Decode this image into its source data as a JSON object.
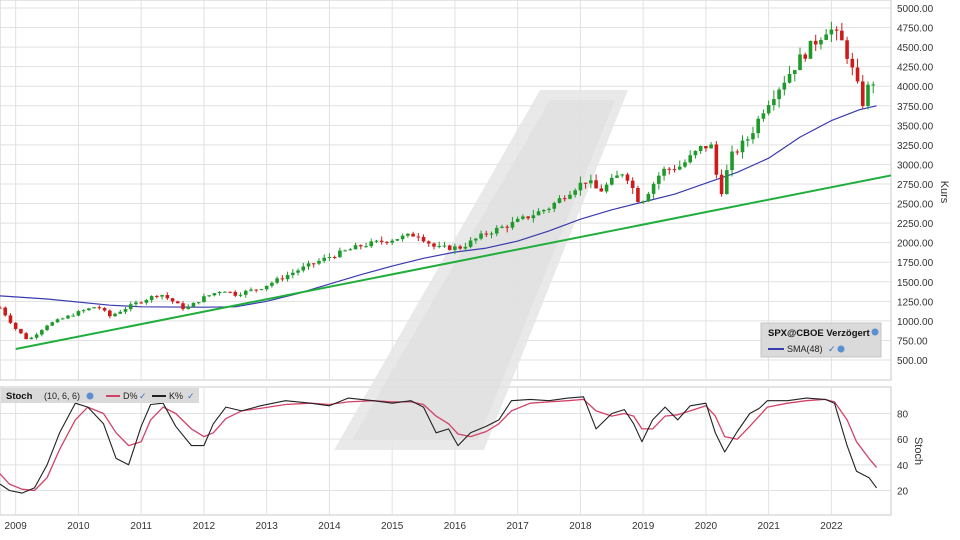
{
  "colors": {
    "up": "#1e9a2c",
    "down": "#cc1b1b",
    "sma": "#3a3ab0",
    "trend": "#1fae3b",
    "stoch_d": "#d24268",
    "stoch_k": "#222222",
    "grid": "#e1e1e1"
  },
  "chart_data": [
    {
      "type": "candlestick",
      "id": "price",
      "ylabel": "Kurs",
      "ylim": [
        300,
        5100
      ],
      "y_ticks": [
        500,
        750,
        1000,
        1250,
        1500,
        1750,
        2000,
        2250,
        2500,
        2750,
        3000,
        3250,
        3500,
        3750,
        4000,
        4250,
        4500,
        4750,
        5000
      ],
      "y_tick_labels": [
        "500.00",
        "750.00",
        "1000.00",
        "1250.00",
        "1500.00",
        "1750.00",
        "2000.00",
        "2250.00",
        "2500.00",
        "2750.00",
        "3000.00",
        "3250.00",
        "3500.00",
        "3750.00",
        "4000.00",
        "4250.00",
        "4500.00",
        "4750.00",
        "5000.00"
      ],
      "xlim": [
        2008.75,
        2022.95
      ],
      "x_ticks": [
        2009,
        2010,
        2011,
        2012,
        2013,
        2014,
        2015,
        2016,
        2017,
        2018,
        2019,
        2020,
        2021,
        2022
      ],
      "x_tick_labels": [
        "2009",
        "2010",
        "2011",
        "2012",
        "2013",
        "2014",
        "2015",
        "2016",
        "2017",
        "2018",
        "2019",
        "2020",
        "2021",
        "2022"
      ],
      "legend": {
        "title": "SPX@CBOE Verzögert",
        "sma_label": "SMA(48)",
        "position": "bottom-right"
      },
      "anchors": [
        [
          2008.75,
          1170
        ],
        [
          2009.0,
          900
        ],
        [
          2009.2,
          750
        ],
        [
          2009.5,
          950
        ],
        [
          2010.0,
          1110
        ],
        [
          2010.3,
          1190
        ],
        [
          2010.5,
          1060
        ],
        [
          2010.9,
          1220
        ],
        [
          2011.3,
          1350
        ],
        [
          2011.7,
          1150
        ],
        [
          2012.0,
          1300
        ],
        [
          2012.3,
          1400
        ],
        [
          2012.5,
          1340
        ],
        [
          2012.9,
          1420
        ],
        [
          2013.5,
          1650
        ],
        [
          2014.0,
          1820
        ],
        [
          2014.5,
          1960
        ],
        [
          2014.8,
          2010
        ],
        [
          2015.4,
          2110
        ],
        [
          2015.7,
          1930
        ],
        [
          2016.1,
          1940
        ],
        [
          2016.5,
          2120
        ],
        [
          2016.9,
          2240
        ],
        [
          2017.5,
          2450
        ],
        [
          2017.9,
          2700
        ],
        [
          2018.1,
          2800
        ],
        [
          2018.3,
          2650
        ],
        [
          2018.7,
          2920
        ],
        [
          2018.95,
          2500
        ],
        [
          2019.3,
          2920
        ],
        [
          2019.6,
          2980
        ],
        [
          2019.95,
          3230
        ],
        [
          2020.1,
          3230
        ],
        [
          2020.22,
          2580
        ],
        [
          2020.4,
          3100
        ],
        [
          2020.7,
          3360
        ],
        [
          2020.95,
          3760
        ],
        [
          2021.5,
          4350
        ],
        [
          2021.95,
          4760
        ],
        [
          2022.2,
          4530
        ],
        [
          2022.5,
          3790
        ],
        [
          2022.65,
          4130
        ],
        [
          2022.72,
          3830
        ]
      ],
      "series": [
        {
          "name": "SMA(48)",
          "type": "line",
          "points": [
            [
              2008.75,
              1320
            ],
            [
              2009.5,
              1280
            ],
            [
              2010.5,
              1200
            ],
            [
              2011.0,
              1180
            ],
            [
              2012.0,
              1175
            ],
            [
              2012.5,
              1180
            ],
            [
              2013.0,
              1250
            ],
            [
              2013.5,
              1350
            ],
            [
              2014.0,
              1470
            ],
            [
              2014.5,
              1590
            ],
            [
              2015.0,
              1700
            ],
            [
              2015.5,
              1800
            ],
            [
              2016.0,
              1880
            ],
            [
              2016.5,
              1930
            ],
            [
              2017.0,
              2020
            ],
            [
              2017.5,
              2150
            ],
            [
              2018.0,
              2300
            ],
            [
              2018.5,
              2420
            ],
            [
              2019.0,
              2520
            ],
            [
              2019.5,
              2620
            ],
            [
              2020.0,
              2760
            ],
            [
              2020.5,
              2900
            ],
            [
              2021.0,
              3080
            ],
            [
              2021.5,
              3350
            ],
            [
              2022.0,
              3560
            ],
            [
              2022.45,
              3700
            ],
            [
              2022.72,
              3750
            ]
          ]
        },
        {
          "name": "Trendlinie",
          "type": "line",
          "points": [
            [
              2009.0,
              640
            ],
            [
              2022.95,
              2860
            ]
          ]
        }
      ]
    },
    {
      "type": "line",
      "id": "stoch",
      "ylabel": "Stoch",
      "ylim": [
        0,
        100
      ],
      "y_ticks": [
        20,
        40,
        60,
        80
      ],
      "y_tick_labels": [
        "20",
        "40",
        "60",
        "80"
      ],
      "legend": {
        "title": "Stoch",
        "params": "(10, 6, 6)",
        "d_label": "D%",
        "k_label": "K%",
        "position": "top-left"
      },
      "series": [
        {
          "name": "K%",
          "points": [
            [
              2008.75,
              25
            ],
            [
              2008.9,
              20
            ],
            [
              2009.1,
              18
            ],
            [
              2009.3,
              22
            ],
            [
              2009.5,
              40
            ],
            [
              2009.7,
              65
            ],
            [
              2009.95,
              88
            ],
            [
              2010.15,
              85
            ],
            [
              2010.4,
              72
            ],
            [
              2010.6,
              45
            ],
            [
              2010.8,
              40
            ],
            [
              2011.0,
              70
            ],
            [
              2011.15,
              87
            ],
            [
              2011.35,
              88
            ],
            [
              2011.55,
              70
            ],
            [
              2011.8,
              55
            ],
            [
              2012.0,
              55
            ],
            [
              2012.15,
              72
            ],
            [
              2012.35,
              85
            ],
            [
              2012.6,
              82
            ],
            [
              2012.9,
              86
            ],
            [
              2013.3,
              90
            ],
            [
              2013.7,
              88
            ],
            [
              2014.0,
              86
            ],
            [
              2014.3,
              92
            ],
            [
              2014.7,
              90
            ],
            [
              2015.0,
              88
            ],
            [
              2015.3,
              90
            ],
            [
              2015.5,
              85
            ],
            [
              2015.7,
              65
            ],
            [
              2015.9,
              68
            ],
            [
              2016.05,
              55
            ],
            [
              2016.25,
              65
            ],
            [
              2016.5,
              70
            ],
            [
              2016.7,
              75
            ],
            [
              2016.9,
              90
            ],
            [
              2017.2,
              91
            ],
            [
              2017.5,
              90
            ],
            [
              2017.8,
              92
            ],
            [
              2018.05,
              93
            ],
            [
              2018.25,
              68
            ],
            [
              2018.5,
              80
            ],
            [
              2018.7,
              83
            ],
            [
              2018.85,
              72
            ],
            [
              2018.98,
              58
            ],
            [
              2019.15,
              75
            ],
            [
              2019.35,
              85
            ],
            [
              2019.55,
              75
            ],
            [
              2019.75,
              86
            ],
            [
              2020.0,
              88
            ],
            [
              2020.15,
              65
            ],
            [
              2020.3,
              50
            ],
            [
              2020.5,
              66
            ],
            [
              2020.7,
              80
            ],
            [
              2020.85,
              84
            ],
            [
              2020.98,
              90
            ],
            [
              2021.3,
              90
            ],
            [
              2021.6,
              92
            ],
            [
              2021.9,
              91
            ],
            [
              2022.05,
              88
            ],
            [
              2022.25,
              55
            ],
            [
              2022.4,
              35
            ],
            [
              2022.6,
              30
            ],
            [
              2022.72,
              22
            ]
          ]
        },
        {
          "name": "D%",
          "points": [
            [
              2008.75,
              33
            ],
            [
              2008.9,
              25
            ],
            [
              2009.1,
              21
            ],
            [
              2009.3,
              20
            ],
            [
              2009.5,
              30
            ],
            [
              2009.7,
              52
            ],
            [
              2009.95,
              75
            ],
            [
              2010.15,
              85
            ],
            [
              2010.4,
              80
            ],
            [
              2010.6,
              65
            ],
            [
              2010.8,
              55
            ],
            [
              2011.0,
              58
            ],
            [
              2011.15,
              75
            ],
            [
              2011.35,
              85
            ],
            [
              2011.55,
              80
            ],
            [
              2011.8,
              68
            ],
            [
              2012.0,
              62
            ],
            [
              2012.15,
              65
            ],
            [
              2012.35,
              76
            ],
            [
              2012.6,
              82
            ],
            [
              2012.9,
              84
            ],
            [
              2013.3,
              87
            ],
            [
              2013.7,
              88
            ],
            [
              2014.0,
              87
            ],
            [
              2014.3,
              89
            ],
            [
              2014.7,
              90
            ],
            [
              2015.0,
              89
            ],
            [
              2015.3,
              89
            ],
            [
              2015.5,
              87
            ],
            [
              2015.7,
              78
            ],
            [
              2015.9,
              72
            ],
            [
              2016.05,
              64
            ],
            [
              2016.25,
              62
            ],
            [
              2016.5,
              66
            ],
            [
              2016.7,
              72
            ],
            [
              2016.9,
              82
            ],
            [
              2017.2,
              88
            ],
            [
              2017.5,
              89
            ],
            [
              2017.8,
              90
            ],
            [
              2018.05,
              91
            ],
            [
              2018.25,
              82
            ],
            [
              2018.5,
              78
            ],
            [
              2018.7,
              80
            ],
            [
              2018.85,
              78
            ],
            [
              2018.98,
              68
            ],
            [
              2019.15,
              68
            ],
            [
              2019.35,
              78
            ],
            [
              2019.55,
              79
            ],
            [
              2019.75,
              82
            ],
            [
              2020.0,
              86
            ],
            [
              2020.15,
              78
            ],
            [
              2020.3,
              62
            ],
            [
              2020.5,
              60
            ],
            [
              2020.7,
              70
            ],
            [
              2020.85,
              78
            ],
            [
              2020.98,
              85
            ],
            [
              2021.3,
              88
            ],
            [
              2021.6,
              90
            ],
            [
              2021.9,
              91
            ],
            [
              2022.05,
              89
            ],
            [
              2022.25,
              75
            ],
            [
              2022.4,
              58
            ],
            [
              2022.6,
              45
            ],
            [
              2022.72,
              38
            ]
          ]
        }
      ]
    }
  ]
}
